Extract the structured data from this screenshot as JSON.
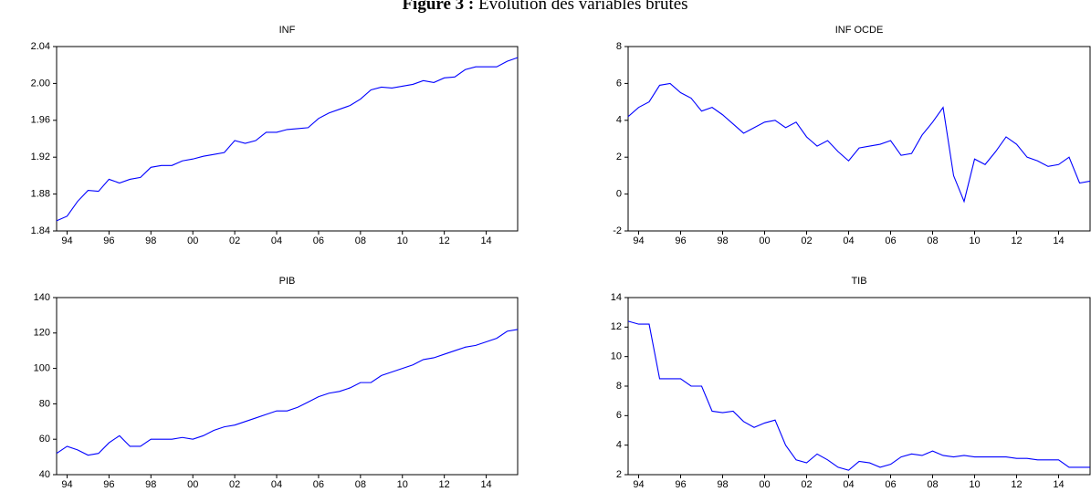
{
  "figure_title": {
    "label": "Figure 3 :",
    "text": "Évolution des variables brutes"
  },
  "chart_data": [
    {
      "type": "line",
      "title": "INF",
      "color": "#0000ff",
      "x": [
        1993.5,
        1994,
        1994.5,
        1995,
        1995.5,
        1996,
        1996.5,
        1997,
        1997.5,
        1998,
        1998.5,
        1999,
        1999.5,
        2000,
        2000.5,
        2001,
        2001.5,
        2002,
        2002.5,
        2003,
        2003.5,
        2004,
        2004.5,
        2005,
        2005.5,
        2006,
        2006.5,
        2007,
        2007.5,
        2008,
        2008.5,
        2009,
        2009.5,
        2010,
        2010.5,
        2011,
        2011.5,
        2012,
        2012.5,
        2013,
        2013.5,
        2014,
        2014.5,
        2015,
        2015.5
      ],
      "values": [
        1.851,
        1.856,
        1.872,
        1.884,
        1.883,
        1.896,
        1.892,
        1.896,
        1.898,
        1.909,
        1.911,
        1.911,
        1.916,
        1.918,
        1.921,
        1.923,
        1.925,
        1.938,
        1.935,
        1.938,
        1.947,
        1.947,
        1.95,
        1.951,
        1.952,
        1.962,
        1.968,
        1.972,
        1.976,
        1.983,
        1.993,
        1.996,
        1.995,
        1.997,
        1.999,
        2.003,
        2.001,
        2.006,
        2.007,
        2.015,
        2.018,
        2.018,
        2.018,
        2.024,
        2.028
      ],
      "xlim": [
        1993.5,
        2015.5
      ],
      "xticks": [
        {
          "value": 1994,
          "label": "94"
        },
        {
          "value": 1996,
          "label": "96"
        },
        {
          "value": 1998,
          "label": "98"
        },
        {
          "value": 2000,
          "label": "00"
        },
        {
          "value": 2002,
          "label": "02"
        },
        {
          "value": 2004,
          "label": "04"
        },
        {
          "value": 2006,
          "label": "06"
        },
        {
          "value": 2008,
          "label": "08"
        },
        {
          "value": 2010,
          "label": "10"
        },
        {
          "value": 2012,
          "label": "12"
        },
        {
          "value": 2014,
          "label": "14"
        }
      ],
      "ylim": [
        1.84,
        2.04
      ],
      "yticks": [
        1.84,
        1.88,
        1.92,
        1.96,
        {
          "value": 2,
          "label": "2.00"
        },
        2.04
      ]
    },
    {
      "type": "line",
      "title": "INF OCDE",
      "color": "#0000ff",
      "x": [
        1993.5,
        1994,
        1994.5,
        1995,
        1995.5,
        1996,
        1996.5,
        1997,
        1997.5,
        1998,
        1998.5,
        1999,
        1999.5,
        2000,
        2000.5,
        2001,
        2001.5,
        2002,
        2002.5,
        2003,
        2003.5,
        2004,
        2004.5,
        2005,
        2005.5,
        2006,
        2006.5,
        2007,
        2007.5,
        2008,
        2008.5,
        2009,
        2009.5,
        2010,
        2010.5,
        2011,
        2011.5,
        2012,
        2012.5,
        2013,
        2013.5,
        2014,
        2014.5,
        2015,
        2015.5
      ],
      "values": [
        4.2,
        4.7,
        5.0,
        5.9,
        6.0,
        5.5,
        5.2,
        4.5,
        4.7,
        4.3,
        3.8,
        3.3,
        3.6,
        3.9,
        4.0,
        3.6,
        3.9,
        3.1,
        2.6,
        2.9,
        2.3,
        1.8,
        2.5,
        2.6,
        2.7,
        2.9,
        2.1,
        2.2,
        3.2,
        3.9,
        4.7,
        1.0,
        -0.4,
        1.9,
        1.6,
        2.3,
        3.1,
        2.7,
        2.0,
        1.8,
        1.5,
        1.6,
        2.0,
        0.6,
        0.7
      ],
      "xlim": [
        1993.5,
        2015.5
      ],
      "xticks": [
        {
          "value": 1994,
          "label": "94"
        },
        {
          "value": 1996,
          "label": "96"
        },
        {
          "value": 1998,
          "label": "98"
        },
        {
          "value": 2000,
          "label": "00"
        },
        {
          "value": 2002,
          "label": "02"
        },
        {
          "value": 2004,
          "label": "04"
        },
        {
          "value": 2006,
          "label": "06"
        },
        {
          "value": 2008,
          "label": "08"
        },
        {
          "value": 2010,
          "label": "10"
        },
        {
          "value": 2012,
          "label": "12"
        },
        {
          "value": 2014,
          "label": "14"
        }
      ],
      "ylim": [
        -2,
        8
      ],
      "yticks": [
        -2,
        0,
        2,
        4,
        6,
        8
      ]
    },
    {
      "type": "line",
      "title": "PIB",
      "color": "#0000ff",
      "x": [
        1993.5,
        1994,
        1994.5,
        1995,
        1995.5,
        1996,
        1996.5,
        1997,
        1997.5,
        1998,
        1998.5,
        1999,
        1999.5,
        2000,
        2000.5,
        2001,
        2001.5,
        2002,
        2002.5,
        2003,
        2003.5,
        2004,
        2004.5,
        2005,
        2005.5,
        2006,
        2006.5,
        2007,
        2007.5,
        2008,
        2008.5,
        2009,
        2009.5,
        2010,
        2010.5,
        2011,
        2011.5,
        2012,
        2012.5,
        2013,
        2013.5,
        2014,
        2014.5,
        2015,
        2015.5
      ],
      "values": [
        52,
        56,
        54,
        51,
        52,
        58,
        62,
        56,
        56,
        60,
        60,
        60,
        61,
        60,
        62,
        65,
        67,
        68,
        70,
        72,
        74,
        76,
        76,
        78,
        81,
        84,
        86,
        87,
        89,
        92,
        92,
        96,
        98,
        100,
        102,
        105,
        106,
        108,
        110,
        112,
        113,
        115,
        117,
        121,
        122
      ],
      "xlim": [
        1993.5,
        2015.5
      ],
      "xticks": [
        {
          "value": 1994,
          "label": "94"
        },
        {
          "value": 1996,
          "label": "96"
        },
        {
          "value": 1998,
          "label": "98"
        },
        {
          "value": 2000,
          "label": "00"
        },
        {
          "value": 2002,
          "label": "02"
        },
        {
          "value": 2004,
          "label": "04"
        },
        {
          "value": 2006,
          "label": "06"
        },
        {
          "value": 2008,
          "label": "08"
        },
        {
          "value": 2010,
          "label": "10"
        },
        {
          "value": 2012,
          "label": "12"
        },
        {
          "value": 2014,
          "label": "14"
        }
      ],
      "ylim": [
        40,
        140
      ],
      "yticks": [
        40,
        60,
        80,
        100,
        120,
        140
      ]
    },
    {
      "type": "line",
      "title": "TIB",
      "color": "#0000ff",
      "x": [
        1993.5,
        1994,
        1994.5,
        1995,
        1995.5,
        1996,
        1996.5,
        1997,
        1997.5,
        1998,
        1998.5,
        1999,
        1999.5,
        2000,
        2000.5,
        2001,
        2001.5,
        2002,
        2002.5,
        2003,
        2003.5,
        2004,
        2004.5,
        2005,
        2005.5,
        2006,
        2006.5,
        2007,
        2007.5,
        2008,
        2008.5,
        2009,
        2009.5,
        2010,
        2010.5,
        2011,
        2011.5,
        2012,
        2012.5,
        2013,
        2013.5,
        2014,
        2014.5,
        2015,
        2015.5
      ],
      "values": [
        12.4,
        12.2,
        12.2,
        8.5,
        8.5,
        8.5,
        8.0,
        8.0,
        6.3,
        6.2,
        6.3,
        5.6,
        5.2,
        5.5,
        5.7,
        4.0,
        3.0,
        2.8,
        3.4,
        3.0,
        2.5,
        2.3,
        2.9,
        2.8,
        2.5,
        2.7,
        3.2,
        3.4,
        3.3,
        3.6,
        3.3,
        3.2,
        3.3,
        3.2,
        3.2,
        3.2,
        3.2,
        3.1,
        3.1,
        3.0,
        3.0,
        3.0,
        2.5,
        2.5,
        2.5
      ],
      "xlim": [
        1993.5,
        2015.5
      ],
      "xticks": [
        {
          "value": 1994,
          "label": "94"
        },
        {
          "value": 1996,
          "label": "96"
        },
        {
          "value": 1998,
          "label": "98"
        },
        {
          "value": 2000,
          "label": "00"
        },
        {
          "value": 2002,
          "label": "02"
        },
        {
          "value": 2004,
          "label": "04"
        },
        {
          "value": 2006,
          "label": "06"
        },
        {
          "value": 2008,
          "label": "08"
        },
        {
          "value": 2010,
          "label": "10"
        },
        {
          "value": 2012,
          "label": "12"
        },
        {
          "value": 2014,
          "label": "14"
        }
      ],
      "ylim": [
        2,
        14
      ],
      "yticks": [
        2,
        4,
        6,
        8,
        10,
        12,
        14
      ]
    }
  ]
}
